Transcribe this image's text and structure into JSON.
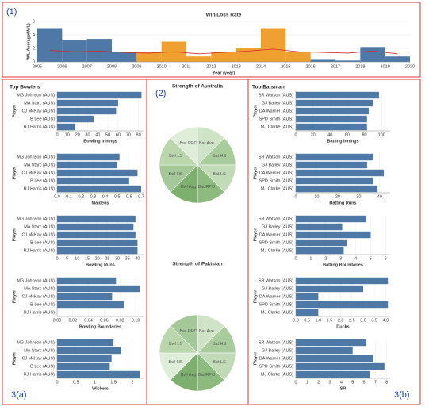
{
  "panel_labels": [
    "(1)",
    "(2)",
    "3(a)",
    "3(b)"
  ],
  "headings": {
    "bowlers": "Top Bowlers",
    "batsmen": "Top Batsman"
  },
  "chart_data": [
    {
      "type": "bar_line",
      "title": "Win/Loss Rate",
      "x_label": "Year (year)",
      "y_label": "W/L Average(W/L)",
      "x": [
        2005,
        2006,
        2007,
        2008,
        2009,
        2010,
        2011,
        2012,
        2013,
        2014,
        2015,
        2016,
        2017,
        2018,
        2019
      ],
      "bars": {
        "values": [
          5,
          3.2,
          3.4,
          1.5,
          1.5,
          3,
          0.8,
          1.5,
          2,
          5,
          1.5,
          0.3,
          0.2,
          2.2,
          0.8
        ],
        "colors": [
          "#4e79a7",
          "#4e79a7",
          "#4e79a7",
          "#4e79a7",
          "#f0a030",
          "#f0a030",
          "#f0a030",
          "#f0a030",
          "#f0a030",
          "#f0a030",
          "#f0a030",
          "#4e79a7",
          "#4e79a7",
          "#4e79a7",
          "#4e79a7"
        ]
      },
      "line": {
        "values": [
          1.7,
          1.5,
          1.6,
          1.4,
          1.3,
          1.5,
          1.2,
          1.4,
          1.6,
          1.9,
          1.5,
          1.4,
          1.3,
          1.6,
          1.2
        ],
        "color": "#d62728"
      },
      "xlim": [
        2005,
        2020
      ],
      "xticks": [
        2005,
        2006,
        2007,
        2008,
        2009,
        2010,
        2011,
        2012,
        2013,
        2014,
        2015,
        2016,
        2017,
        2018,
        2019,
        2020
      ],
      "ylim": [
        0,
        6
      ],
      "yticks": [
        0,
        2,
        4,
        6
      ]
    },
    {
      "type": "hbar",
      "x_label": "Bowling Innings",
      "y_label": "Player",
      "color": "#4e79a7",
      "categories": [
        "MG Johnson (AUS)",
        "MA Starc (AUS)",
        "CJ McKay (AUS)",
        "B Lee (AUS)",
        "RJ Harris (AUS)"
      ],
      "values": [
        83,
        60,
        58,
        36,
        18
      ],
      "xlim": [
        0,
        85
      ],
      "xticks": [
        0,
        10,
        20,
        30,
        40,
        50,
        60,
        70,
        80
      ]
    },
    {
      "type": "hbar",
      "x_label": "Maidens",
      "y_label": "Player",
      "color": "#4e79a7",
      "categories": [
        "MG Johnson (AUS)",
        "MA Starc (AUS)",
        "CJ McKay (AUS)",
        "B Lee (AUS)",
        "RJ Harris (AUS)"
      ],
      "values": [
        0.52,
        0.5,
        0.67,
        0.6,
        0.7
      ],
      "xlim": [
        0,
        0.72
      ],
      "xticks": [
        {
          "value": 0,
          "label": "0.0"
        },
        0.1,
        0.2,
        0.3,
        0.4,
        0.5,
        0.6,
        0.7
      ]
    },
    {
      "type": "hbar",
      "x_label": "Bowling Runs",
      "y_label": "Player",
      "color": "#4e79a7",
      "categories": [
        "MG Johnson (AUS)",
        "MA Starc (AUS)",
        "CJ McKay (AUS)",
        "B Lee (AUS)",
        "RJ Harris (AUS)"
      ],
      "values": [
        39,
        38,
        39,
        40,
        40
      ],
      "xlim": [
        0,
        43
      ],
      "xticks": [
        0,
        5,
        10,
        15,
        20,
        25,
        30,
        35,
        40
      ]
    },
    {
      "type": "hbar",
      "x_label": "Bowling Boundaries",
      "y_label": "Player",
      "color": "#4e79a7",
      "categories": [
        "MG Johnson (AUS)",
        "MA Starc (AUS)",
        "CJ McKay (AUS)",
        "B Lee (AUS)",
        "RJ Harris (AUS)"
      ],
      "values": [
        0.075,
        0.105,
        0.07,
        0.085,
        0
      ],
      "xlim": [
        0,
        0.11
      ],
      "xticks": [
        {
          "value": 0,
          "label": "0.00"
        },
        {
          "value": 0.02,
          "label": "0.02"
        },
        {
          "value": 0.04,
          "label": "0.04"
        },
        {
          "value": 0.06,
          "label": "0.06"
        },
        {
          "value": 0.08,
          "label": "0.08"
        },
        {
          "value": 0.1,
          "label": "0.10"
        }
      ]
    },
    {
      "type": "hbar",
      "x_label": "Wickets",
      "y_label": "Player",
      "color": "#4e79a7",
      "categories": [
        "MG Johnson (AUS)",
        "MA Starc (AUS)",
        "CJ McKay (AUS)",
        "B Lee (AUS)",
        "RJ Harris (AUS)"
      ],
      "values": [
        1.5,
        1.7,
        1.45,
        1.4,
        2.2
      ],
      "xlim": [
        0,
        2.3
      ],
      "xticks": [
        0,
        0.5,
        1,
        1.5,
        2
      ]
    },
    {
      "type": "hbar",
      "x_label": "Batting Innings",
      "y_label": "Player",
      "color": "#4e79a7",
      "categories": [
        "SR Watson (AUS)",
        "GJ Bailey (AUS)",
        "DA Warner (AUS)",
        "SPD Smith (AUS)",
        "MJ Clarke (AUS)"
      ],
      "values": [
        97,
        90,
        85,
        83,
        83
      ],
      "xlim": [
        0,
        110
      ],
      "xticks": [
        0,
        20,
        40,
        60,
        80,
        100
      ]
    },
    {
      "type": "hbar",
      "x_label": "Batting Runs",
      "y_label": "Player",
      "color": "#4e79a7",
      "categories": [
        "SR Watson (AUS)",
        "GJ Bailey (AUS)",
        "DA Warner (AUS)",
        "SPD Smith (AUS)",
        "MJ Clarke (AUS)"
      ],
      "values": [
        37,
        34,
        42,
        37,
        39
      ],
      "xlim": [
        0,
        45
      ],
      "xticks": [
        0,
        10,
        20,
        30,
        40
      ]
    },
    {
      "type": "hbar",
      "x_label": "Batting Boundaries",
      "y_label": "Player",
      "color": "#4e79a7",
      "categories": [
        "SR Watson (AUS)",
        "GJ Bailey (AUS)",
        "DA Warner (AUS)",
        "SPD Smith (AUS)",
        "MJ Clarke (AUS)"
      ],
      "values": [
        4.7,
        3.1,
        5,
        3.4,
        3.2
      ],
      "xlim": [
        0,
        6.3
      ],
      "xticks": [
        0,
        1,
        2,
        3,
        4,
        5,
        6
      ]
    },
    {
      "type": "hbar",
      "x_label": "Ducks",
      "y_label": "Player",
      "color": "#4e79a7",
      "categories": [
        "SR Watson (AUS)",
        "GJ Bailey (AUS)",
        "DA Warner (AUS)",
        "SPD Smith (AUS)",
        "MJ Clarke (AUS)"
      ],
      "values": [
        4.1,
        3,
        1,
        4.1,
        1
      ],
      "xlim": [
        0,
        4.2
      ],
      "xticks": [
        {
          "value": 0,
          "label": "0.0"
        },
        0.5,
        {
          "value": 1,
          "label": "1.0"
        },
        1.5,
        {
          "value": 2,
          "label": "2.0"
        },
        2.5,
        {
          "value": 3,
          "label": "3.0"
        },
        3.5,
        {
          "value": 4,
          "label": "4.0"
        }
      ]
    },
    {
      "type": "hbar",
      "x_label": "SR",
      "y_label": "Player",
      "color": "#4e79a7",
      "categories": [
        "SR Watson (AUS)",
        "GJ Bailey (AUS)",
        "DA Warner (AUS)",
        "SPD Smith (AUS)",
        "MJ Clarke (AUS)"
      ],
      "values": [
        6.2,
        5,
        6.8,
        7.8,
        6.5
      ],
      "xlim": [
        0,
        8.3
      ],
      "xticks": [
        0,
        1,
        2,
        3,
        4,
        5,
        6,
        7,
        8
      ]
    },
    {
      "type": "pie",
      "title": "Strength of Australia",
      "labels": [
        "Bat Ave",
        "Bat HS",
        "Bat LS",
        "Bat RPO",
        "Bwl Avg",
        "Bwl HS",
        "Bwl LS",
        "Bwl RPO"
      ],
      "values": [
        12.5,
        12.5,
        12.5,
        12.5,
        12.5,
        12.5,
        12.5,
        12.5
      ],
      "colors": [
        "#cfe3c6",
        "#a9cc9c",
        "#c2dbb7",
        "#8dba7e",
        "#7daf6e",
        "#a4c897",
        "#b9d6ad",
        "#dfeed8"
      ]
    },
    {
      "type": "pie",
      "title": "Strength of Pakistan",
      "labels": [
        "Bat Ave",
        "Bat HS",
        "Bat LS",
        "Bat RPO",
        "Bwl Avg",
        "Bwl HS",
        "Bwl LS",
        "Bwl RPO"
      ],
      "values": [
        12.5,
        12.5,
        12.5,
        12.5,
        12.5,
        12.5,
        12.5,
        12.5
      ],
      "colors": [
        "#cfe3c6",
        "#a9cc9c",
        "#c2dbb7",
        "#8dba7e",
        "#7daf6e",
        "#dfeed8",
        "#b9d6ad",
        "#a4c897"
      ]
    }
  ]
}
